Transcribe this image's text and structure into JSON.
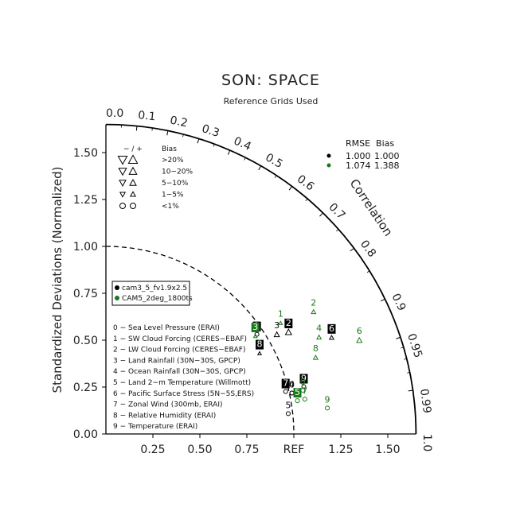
{
  "chart_data": {
    "type": "scatter",
    "title": "SON: SPACE",
    "subtitle": "Reference Grids Used",
    "ylabel": "Standardized Deviations (Normalized)",
    "arc_label": "Correlation",
    "ref_label": "REF",
    "sd_range": [
      0,
      1.65
    ],
    "x_ticks": [
      "0.25",
      "0.50",
      "0.75",
      "1.25",
      "1.50"
    ],
    "x_tick_values": [
      0.25,
      0.5,
      0.75,
      1.25,
      1.5
    ],
    "y_ticks": [
      "0.00",
      "0.25",
      "0.50",
      "0.75",
      "1.00",
      "1.25",
      "1.50"
    ],
    "y_tick_values": [
      0,
      0.25,
      0.5,
      0.75,
      1.0,
      1.25,
      1.5
    ],
    "corr_ticks": [
      "0.0",
      "0.1",
      "0.2",
      "0.3",
      "0.4",
      "0.5",
      "0.6",
      "0.7",
      "0.8",
      "0.9",
      "0.95",
      "0.99",
      "1.0"
    ],
    "corr_tick_values": [
      0.0,
      0.1,
      0.2,
      0.3,
      0.4,
      0.5,
      0.6,
      0.7,
      0.8,
      0.9,
      0.95,
      0.99,
      1.0
    ],
    "bias_legend": {
      "header": [
        "− / +",
        "Bias"
      ],
      "rows": [
        ">20%",
        "10−20%",
        "5−10%",
        "1−5%",
        "<1%"
      ]
    },
    "rmse_legend": {
      "header": "RMSE  Bias",
      "rows": [
        {
          "rmse": "1.000",
          "bias": "1.000",
          "color": "#000000"
        },
        {
          "rmse": "1.074",
          "bias": "1.388",
          "color": "#1a7a1a"
        }
      ]
    },
    "series": [
      {
        "name": "cam3_5_fv1.9x2.5",
        "color": "#000000",
        "points": [
          {
            "id": "0",
            "sd": 1.02,
            "corr": 0.97,
            "bias": "<1%"
          },
          {
            "id": "1",
            "sd": 0.98,
            "corr": 0.82,
            "bias": "<1%"
          },
          {
            "id": "2",
            "sd": 1.13,
            "corr": 0.86,
            "bias": ">20%"
          },
          {
            "id": "3",
            "sd": 1.07,
            "corr": 0.85,
            "bias": "10-20%"
          },
          {
            "id": "4",
            "sd": 1.02,
            "corr": 0.97,
            "bias": "<1%"
          },
          {
            "id": "5",
            "sd": 0.98,
            "corr": 0.99,
            "bias": "<1%"
          },
          {
            "id": "6",
            "sd": 1.32,
            "corr": 0.91,
            "bias": "5-10%"
          },
          {
            "id": "7",
            "sd": 0.99,
            "corr": 0.966,
            "bias": "<1%"
          },
          {
            "id": "8",
            "sd": 0.94,
            "corr": 0.87,
            "bias": "1-5%"
          },
          {
            "id": "9",
            "sd": 1.09,
            "corr": 0.966,
            "bias": "<1%"
          }
        ]
      },
      {
        "name": "CAM5_2deg_1800ts",
        "color": "#1a7a1a",
        "points": [
          {
            "id": "0",
            "sd": 1.08,
            "corr": 0.97,
            "bias": "<1%"
          },
          {
            "id": "1",
            "sd": 1.12,
            "corr": 0.83,
            "bias": "1-5%"
          },
          {
            "id": "2",
            "sd": 1.3,
            "corr": 0.85,
            "bias": "5-10%"
          },
          {
            "id": "3",
            "sd": 0.97,
            "corr": 0.82,
            "bias": "1-5%"
          },
          {
            "id": "4",
            "sd": 1.26,
            "corr": 0.9,
            "bias": "5-10%"
          },
          {
            "id": "5",
            "sd": 1.04,
            "corr": 0.98,
            "bias": "<1%"
          },
          {
            "id": "6",
            "sd": 1.45,
            "corr": 0.93,
            "bias": "10-20%"
          },
          {
            "id": "7",
            "sd": 1.08,
            "corr": 0.98,
            "bias": "<1%"
          },
          {
            "id": "8",
            "sd": 1.2,
            "corr": 0.93,
            "bias": "5-10%"
          },
          {
            "id": "9",
            "sd": 1.19,
            "corr": 0.99,
            "bias": "<1%"
          }
        ]
      }
    ],
    "variables": [
      "0 − Sea Level Pressure (ERAI)",
      "1 − SW Cloud Forcing (CERES−EBAF)",
      "2 − LW Cloud Forcing (CERES−EBAF)",
      "3 − Land Rainfall (30N−30S, GPCP)",
      "4 − Ocean Rainfall (30N−30S, GPCP)",
      "5 − Land 2−m Temperature (Willmott)",
      "6 − Pacific Surface Stress (5N−5S,ERS)",
      "7 − Zonal Wind (300mb, ERAI)",
      "8 − Relative Humidity (ERAI)",
      "9 − Temperature (ERAI)"
    ]
  }
}
